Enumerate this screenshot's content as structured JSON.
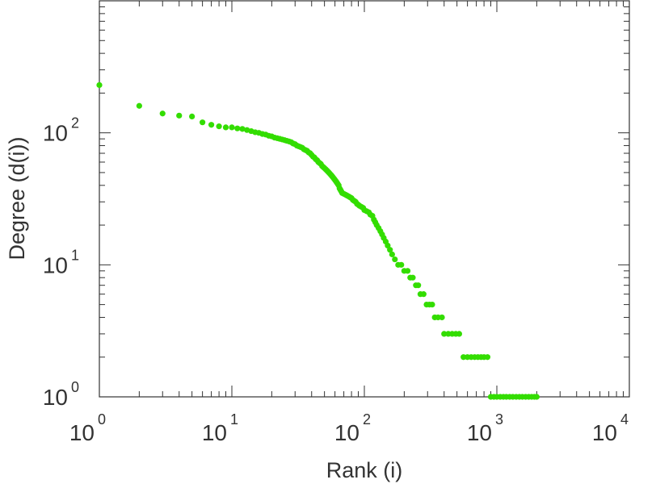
{
  "chart_data": {
    "type": "scatter",
    "title": "",
    "xlabel": "Rank (i)",
    "ylabel": "Degree (d(i))",
    "x_scale": "log",
    "y_scale": "log",
    "xlim": [
      1,
      10000
    ],
    "ylim": [
      1,
      1000
    ],
    "x_ticks": [
      {
        "base": "10",
        "exp": "0",
        "value": 1
      },
      {
        "base": "10",
        "exp": "1",
        "value": 10
      },
      {
        "base": "10",
        "exp": "2",
        "value": 100
      },
      {
        "base": "10",
        "exp": "3",
        "value": 1000
      },
      {
        "base": "10",
        "exp": "4",
        "value": 10000
      }
    ],
    "y_ticks": [
      {
        "base": "10",
        "exp": "0",
        "value": 1
      },
      {
        "base": "10",
        "exp": "1",
        "value": 10
      },
      {
        "base": "10",
        "exp": "2",
        "value": 100
      }
    ],
    "grid": false,
    "point_color": "#33dd00",
    "points": [
      [
        1,
        230
      ],
      [
        2,
        160
      ],
      [
        3,
        140
      ],
      [
        4,
        135
      ],
      [
        5,
        133
      ],
      [
        6,
        120
      ],
      [
        7,
        115
      ],
      [
        8,
        112
      ],
      [
        9,
        110
      ],
      [
        10,
        110
      ],
      [
        11,
        108
      ],
      [
        12,
        107
      ],
      [
        13,
        105
      ],
      [
        14,
        103
      ],
      [
        15,
        101
      ],
      [
        16,
        100
      ],
      [
        17,
        98
      ],
      [
        18,
        97
      ],
      [
        19,
        95
      ],
      [
        20,
        94
      ],
      [
        21,
        92
      ],
      [
        22,
        91
      ],
      [
        23,
        90
      ],
      [
        24,
        89
      ],
      [
        25,
        88
      ],
      [
        26,
        87
      ],
      [
        27,
        86
      ],
      [
        28,
        85
      ],
      [
        29,
        83
      ],
      [
        30,
        82
      ],
      [
        31,
        80
      ],
      [
        32,
        79
      ],
      [
        33,
        78
      ],
      [
        34,
        77
      ],
      [
        35,
        75
      ],
      [
        36,
        74
      ],
      [
        37,
        73
      ],
      [
        38,
        71
      ],
      [
        39,
        70
      ],
      [
        40,
        68
      ],
      [
        41,
        66
      ],
      [
        42,
        65
      ],
      [
        43,
        63
      ],
      [
        44,
        62
      ],
      [
        45,
        60
      ],
      [
        46,
        59
      ],
      [
        47,
        58
      ],
      [
        48,
        56
      ],
      [
        49,
        55
      ],
      [
        50,
        54
      ],
      [
        51,
        53
      ],
      [
        52,
        52
      ],
      [
        53,
        51
      ],
      [
        54,
        50
      ],
      [
        55,
        49
      ],
      [
        56,
        48
      ],
      [
        57,
        47
      ],
      [
        58,
        46
      ],
      [
        59,
        45
      ],
      [
        60,
        44
      ],
      [
        61,
        43
      ],
      [
        62,
        42
      ],
      [
        63,
        41
      ],
      [
        64,
        40
      ],
      [
        65,
        38
      ],
      [
        66,
        37
      ],
      [
        67,
        36
      ],
      [
        68,
        35
      ],
      [
        70,
        34.5
      ],
      [
        72,
        34
      ],
      [
        74,
        33.5
      ],
      [
        76,
        33
      ],
      [
        78,
        32.5
      ],
      [
        80,
        32
      ],
      [
        82,
        31
      ],
      [
        84,
        30.5
      ],
      [
        86,
        30
      ],
      [
        88,
        29
      ],
      [
        90,
        28.5
      ],
      [
        92,
        28
      ],
      [
        95,
        27.5
      ],
      [
        98,
        27
      ],
      [
        100,
        26
      ],
      [
        104,
        25.5
      ],
      [
        108,
        25
      ],
      [
        111,
        24
      ],
      [
        115,
        23.5
      ],
      [
        118,
        22
      ],
      [
        121,
        21
      ],
      [
        124,
        20
      ],
      [
        128,
        19
      ],
      [
        132,
        18
      ],
      [
        136,
        17
      ],
      [
        140,
        16
      ],
      [
        145,
        15
      ],
      [
        150,
        14
      ],
      [
        156,
        13
      ],
      [
        162,
        12
      ],
      [
        170,
        11
      ],
      [
        180,
        10
      ],
      [
        190,
        10
      ],
      [
        200,
        9
      ],
      [
        212,
        9
      ],
      [
        222,
        8
      ],
      [
        232,
        8
      ],
      [
        245,
        7
      ],
      [
        255,
        7
      ],
      [
        265,
        6
      ],
      [
        280,
        6
      ],
      [
        295,
        5
      ],
      [
        310,
        5
      ],
      [
        325,
        5
      ],
      [
        340,
        4
      ],
      [
        360,
        4
      ],
      [
        385,
        4
      ],
      [
        400,
        3
      ],
      [
        430,
        3
      ],
      [
        460,
        3
      ],
      [
        490,
        3
      ],
      [
        520,
        3
      ],
      [
        560,
        2
      ],
      [
        600,
        2
      ],
      [
        640,
        2
      ],
      [
        680,
        2
      ],
      [
        720,
        2
      ],
      [
        760,
        2
      ],
      [
        800,
        2
      ],
      [
        850,
        2
      ],
      [
        900,
        1
      ],
      [
        950,
        1
      ],
      [
        1000,
        1
      ],
      [
        1060,
        1
      ],
      [
        1120,
        1
      ],
      [
        1180,
        1
      ],
      [
        1250,
        1
      ],
      [
        1320,
        1
      ],
      [
        1400,
        1
      ],
      [
        1480,
        1
      ],
      [
        1560,
        1
      ],
      [
        1650,
        1
      ],
      [
        1740,
        1
      ],
      [
        1830,
        1
      ],
      [
        1920,
        1
      ],
      [
        2000,
        1
      ]
    ]
  }
}
